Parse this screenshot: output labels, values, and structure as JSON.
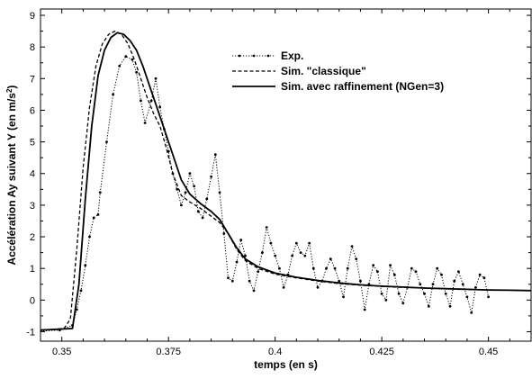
{
  "chart_data": {
    "type": "line",
    "title": "",
    "xlabel": "temps (en s)",
    "ylabel": "Accélération Ay suivant Y  (en m/s²)",
    "ylabel_parts": [
      "Accélération Ay suivant Y  (en m/s",
      "2",
      ")"
    ],
    "xlim": [
      0.345,
      0.46
    ],
    "ylim": [
      -1.3,
      9.2
    ],
    "x_ticks": [
      0.35,
      0.375,
      0.4,
      0.425,
      0.45
    ],
    "x_tick_labels": [
      "0.35",
      "0.375",
      "0.4",
      "0.425",
      "0.45"
    ],
    "y_ticks": [
      -1,
      0,
      1,
      2,
      3,
      4,
      5,
      6,
      7,
      8,
      9
    ],
    "y_tick_labels": [
      "-1",
      "0",
      "1",
      "2",
      "3",
      "4",
      "5",
      "6",
      "7",
      "8",
      "9"
    ],
    "grid": false,
    "legend_position": "top-right",
    "series": [
      {
        "name": "Exp.",
        "style": "dotted-markers",
        "x": [
          0.345,
          0.3495,
          0.3525,
          0.3535,
          0.3545,
          0.3555,
          0.3565,
          0.3575,
          0.3585,
          0.359,
          0.3605,
          0.362,
          0.3635,
          0.365,
          0.3665,
          0.3675,
          0.3685,
          0.3695,
          0.371,
          0.372,
          0.373,
          0.374,
          0.375,
          0.376,
          0.377,
          0.378,
          0.379,
          0.38,
          0.381,
          0.382,
          0.383,
          0.384,
          0.385,
          0.386,
          0.387,
          0.388,
          0.389,
          0.39,
          0.391,
          0.392,
          0.393,
          0.394,
          0.395,
          0.396,
          0.397,
          0.398,
          0.399,
          0.4,
          0.401,
          0.402,
          0.403,
          0.404,
          0.405,
          0.406,
          0.407,
          0.408,
          0.409,
          0.41,
          0.411,
          0.412,
          0.413,
          0.414,
          0.415,
          0.416,
          0.417,
          0.418,
          0.419,
          0.42,
          0.421,
          0.422,
          0.423,
          0.424,
          0.425,
          0.426,
          0.427,
          0.428,
          0.429,
          0.43,
          0.431,
          0.432,
          0.433,
          0.434,
          0.435,
          0.436,
          0.437,
          0.438,
          0.439,
          0.44,
          0.441,
          0.442,
          0.443,
          0.444,
          0.445,
          0.446,
          0.447,
          0.448,
          0.449,
          0.45
        ],
        "y": [
          -0.98,
          -0.95,
          -0.8,
          -0.3,
          0.3,
          1.1,
          2.0,
          2.6,
          2.7,
          3.4,
          5.0,
          6.5,
          7.4,
          7.7,
          7.6,
          7.2,
          6.3,
          5.6,
          6.3,
          7.0,
          6.1,
          5.4,
          4.7,
          4.0,
          3.5,
          3.0,
          3.4,
          4.0,
          3.6,
          2.8,
          2.6,
          3.2,
          3.9,
          4.6,
          3.4,
          2.1,
          0.7,
          0.6,
          1.2,
          1.9,
          1.4,
          0.6,
          0.3,
          0.9,
          1.5,
          2.3,
          1.8,
          1.4,
          1.0,
          0.4,
          0.8,
          1.4,
          1.8,
          1.5,
          1.4,
          1.8,
          1.0,
          0.4,
          0.6,
          1.0,
          1.3,
          1.0,
          0.6,
          0.1,
          1.0,
          1.7,
          1.3,
          0.6,
          -0.3,
          0.5,
          1.1,
          0.9,
          0.2,
          0.0,
          1.1,
          0.8,
          0.2,
          -0.1,
          0.4,
          1.0,
          0.9,
          0.5,
          0.2,
          -0.2,
          0.5,
          1.0,
          0.8,
          0.2,
          -0.2,
          0.6,
          0.9,
          0.5,
          0.1,
          -0.4,
          0.4,
          0.8,
          0.7,
          0.1
        ]
      },
      {
        "name": "Sim. \"classique\"",
        "style": "dashed",
        "x": [
          0.345,
          0.3505,
          0.352,
          0.3535,
          0.355,
          0.3565,
          0.358,
          0.3595,
          0.361,
          0.3625,
          0.364,
          0.3655,
          0.367,
          0.3685,
          0.37,
          0.3715,
          0.373,
          0.3745,
          0.376,
          0.378,
          0.38,
          0.3825,
          0.385,
          0.387,
          0.389,
          0.391,
          0.393,
          0.396,
          0.4,
          0.405,
          0.41,
          0.415,
          0.42,
          0.425,
          0.43,
          0.435,
          0.44,
          0.445,
          0.45,
          0.455,
          0.46
        ],
        "y": [
          -0.95,
          -0.9,
          -0.6,
          1.6,
          4.2,
          6.1,
          7.4,
          8.1,
          8.4,
          8.5,
          8.4,
          8.1,
          7.6,
          7.0,
          6.4,
          5.9,
          5.5,
          4.8,
          4.0,
          3.3,
          3.1,
          2.9,
          2.65,
          2.45,
          2.1,
          1.6,
          1.25,
          1.0,
          0.82,
          0.7,
          0.6,
          0.52,
          0.47,
          0.43,
          0.4,
          0.38,
          0.36,
          0.34,
          0.32,
          0.31,
          0.3
        ]
      },
      {
        "name": "Sim. avec raffinement (NGen=3)",
        "style": "solid",
        "x": [
          0.345,
          0.3525,
          0.354,
          0.3555,
          0.357,
          0.3585,
          0.36,
          0.3615,
          0.363,
          0.3645,
          0.366,
          0.3675,
          0.369,
          0.3705,
          0.372,
          0.3735,
          0.375,
          0.3765,
          0.378,
          0.38,
          0.3825,
          0.385,
          0.387,
          0.389,
          0.391,
          0.393,
          0.396,
          0.4,
          0.405,
          0.41,
          0.415,
          0.42,
          0.425,
          0.43,
          0.435,
          0.44,
          0.445,
          0.45,
          0.455,
          0.46
        ],
        "y": [
          -0.95,
          -0.9,
          0.5,
          3.2,
          5.5,
          7.1,
          7.9,
          8.3,
          8.45,
          8.4,
          8.2,
          7.9,
          7.4,
          6.8,
          6.2,
          5.6,
          5.0,
          4.4,
          3.8,
          3.35,
          3.05,
          2.8,
          2.55,
          2.1,
          1.65,
          1.3,
          1.05,
          0.85,
          0.72,
          0.62,
          0.54,
          0.48,
          0.44,
          0.41,
          0.38,
          0.36,
          0.34,
          0.32,
          0.31,
          0.3
        ]
      }
    ]
  }
}
